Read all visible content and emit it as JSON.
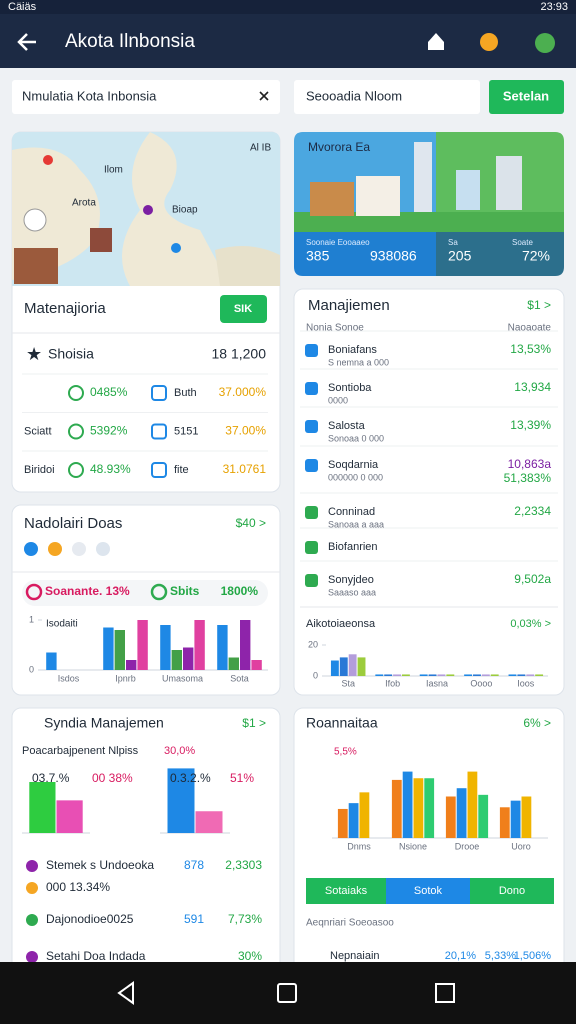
{
  "status_bar": {
    "carrier": "Cäiäs",
    "time": "23:93"
  },
  "app_bar": {
    "title": "Akota Ilnbonsia"
  },
  "search": {
    "left": "Nmulatia Kota Inbonsia",
    "right": "Seooadia Nloom",
    "button": "Setelan"
  },
  "city_card": {
    "map_labels": [
      "Ilom",
      "Arota",
      "Bioap",
      "Al IB"
    ],
    "title": "Matenajioria",
    "button": "SIK",
    "total_label": "Shoisia",
    "total": "18 1,200",
    "rows": [
      {
        "value": "0485%",
        "label2": "Buth",
        "value2": "37.000%"
      },
      {
        "label": "Sciatt",
        "value": "5392%",
        "label2": "5151",
        "value2": "37.00%"
      },
      {
        "label": "Biridoi",
        "value": "48.93%",
        "label2": "fite",
        "value2": "31.0761"
      }
    ]
  },
  "data_card": {
    "title": "Nadolairi Doas",
    "link": "$40 >",
    "pills": [
      "Soanante. 13%",
      "Sbits",
      "1800%"
    ],
    "chart_data": {
      "type": "bar",
      "title": "Isodaiti",
      "categories": [
        "Isdos",
        "Ipnrb",
        "Umasoma",
        "Sota"
      ],
      "ylim": [
        0,
        1
      ],
      "yticks": [
        0,
        1
      ],
      "series": [
        {
          "color": "#1e88e5",
          "values": [
            0.35,
            0.85,
            0.9,
            0.9
          ]
        },
        {
          "color": "#43a047",
          "values": [
            null,
            0.8,
            0.4,
            0.25
          ]
        },
        {
          "color": "#8e24aa",
          "values": [
            null,
            0.2,
            0.45,
            1
          ]
        },
        {
          "color": "#e040a0",
          "values": [
            null,
            1,
            1,
            0.2
          ]
        }
      ]
    }
  },
  "overview_card": {
    "title": "Mvorora Ea",
    "stat_labels": [
      "Soonaie Eooaaeo",
      "Sa",
      "Soate"
    ],
    "stats": [
      "385",
      "938086",
      "205",
      "72%"
    ]
  },
  "manage_card": {
    "title": "Manajiemen",
    "link": "$1 >",
    "sub_left": "Nonia Sonoe",
    "sub_right": "Naoaoate",
    "items": [
      {
        "label": "Boniafans",
        "sub": "S nemna a 000",
        "value": "13,53%"
      },
      {
        "label": "Sontioba",
        "sub": "0000",
        "value": "13,934"
      },
      {
        "label": "Salosta",
        "sub": "Sonoaa 0 000",
        "value": "13,39%"
      },
      {
        "label": "Soqdarnia",
        "sub": "000000 0 000",
        "value": "10,863a",
        "value2": "51,383%"
      },
      {
        "label": "Conninad",
        "sub": "Sanoaa a aaa",
        "value": "2,2334"
      },
      {
        "label": "Biofanrien"
      },
      {
        "label": "Sonyjdeo",
        "sub": "Saaaso aaa",
        "value": "9,502a"
      }
    ],
    "chart_data": {
      "type": "bar",
      "title": "Aikotoiaeonsa",
      "link": "0,03% >",
      "categories": [
        "Sta",
        "Ifob",
        "Iasna",
        "Oooo",
        "Ioos"
      ],
      "ylim": [
        0,
        20
      ],
      "yticks": [
        0,
        20
      ],
      "series": [
        {
          "color": "#1e88e5",
          "values": [
            10,
            1,
            1,
            1,
            1
          ]
        },
        {
          "color": "#2979d6",
          "values": [
            12,
            1,
            1,
            1,
            1
          ]
        },
        {
          "color": "#b39ddb",
          "values": [
            14,
            1,
            1,
            1,
            1
          ]
        },
        {
          "color": "#9ccc3c",
          "values": [
            12,
            1,
            1,
            1,
            1
          ]
        }
      ]
    }
  },
  "summary_card": {
    "title": "Syndia Manajemen",
    "link": "$1 >",
    "sub": "Poacarbajpenent Nlpiss",
    "sub_value": "30,0%",
    "charts": [
      {
        "type": "bar",
        "labels": [
          "03.7.%",
          "00 38%"
        ],
        "ylim": [
          0,
          100
        ],
        "series": [
          {
            "color": "#2ecc40",
            "values": [
              75
            ]
          },
          {
            "color": "#e84fb4",
            "values": [
              48
            ]
          }
        ]
      },
      {
        "type": "bar",
        "labels": [
          "0.3.2.%",
          "51%"
        ],
        "ylim": [
          0,
          100
        ],
        "series": [
          {
            "color": "#1e88e5",
            "values": [
              95
            ]
          },
          {
            "color": "#f06ab4",
            "values": [
              32
            ]
          }
        ]
      }
    ],
    "items": [
      {
        "label": "Stemek s Undoeoka",
        "value": "878",
        "value2": "2,3303"
      },
      {
        "label": "000 13.34%"
      },
      {
        "label": "Dajonodioe0025",
        "value": "591",
        "value2": "7,73%"
      },
      {
        "label": "Setahi Doa Indada",
        "value2": "30%"
      }
    ]
  },
  "report_card": {
    "title": "Roannaitaa",
    "link": "6% >",
    "note": "5,5%",
    "chart_data": {
      "type": "bar",
      "categories": [
        "Dnms",
        "Nsione",
        "Drooe",
        "Uoro"
      ],
      "ylim": [
        0,
        100
      ],
      "series": [
        {
          "color": "#f07f1b",
          "values": [
            35,
            70,
            50,
            37
          ]
        },
        {
          "color": "#1e88e5",
          "values": [
            42,
            80,
            60,
            45
          ]
        },
        {
          "color": "#f0b400",
          "values": [
            55,
            72,
            80,
            50
          ]
        },
        {
          "color": "#2ecc71",
          "values": [
            null,
            72,
            52,
            null
          ]
        }
      ]
    },
    "tabs": [
      "Sotaiaks",
      "Sotok",
      "Dono"
    ],
    "footer": "Aeqnriari Soeoasoo",
    "row": [
      "Nepnaiain",
      "20,1%",
      "5,33%",
      "1,506%"
    ]
  }
}
